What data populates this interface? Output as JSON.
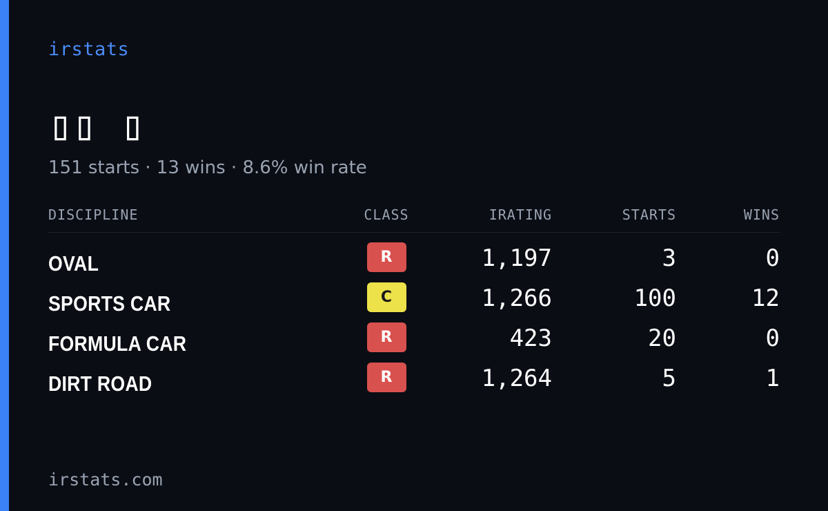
{
  "brand": "irstats",
  "driver_name": "▯▯ ▯",
  "summary": "151 starts · 13 wins · 8.6% win rate",
  "table": {
    "headers": {
      "discipline": "DISCIPLINE",
      "class": "CLASS",
      "irating": "IRATING",
      "starts": "STARTS",
      "wins": "WINS"
    },
    "rows": [
      {
        "discipline": "OVAL",
        "class": "R",
        "irating": "1,197",
        "starts": "3",
        "wins": "0"
      },
      {
        "discipline": "SPORTS CAR",
        "class": "C",
        "irating": "1,266",
        "starts": "100",
        "wins": "12"
      },
      {
        "discipline": "FORMULA CAR",
        "class": "R",
        "irating": "423",
        "starts": "20",
        "wins": "0"
      },
      {
        "discipline": "DIRT ROAD",
        "class": "R",
        "irating": "1,264",
        "starts": "5",
        "wins": "1"
      }
    ]
  },
  "footer": "irstats.com",
  "colors": {
    "background": "#0a0d14",
    "accent": "#3b82f6",
    "class_R_bg": "#d9514e",
    "class_R_fg": "#ffffff",
    "class_C_bg": "#ede24a",
    "class_C_fg": "#1a1a1a"
  }
}
